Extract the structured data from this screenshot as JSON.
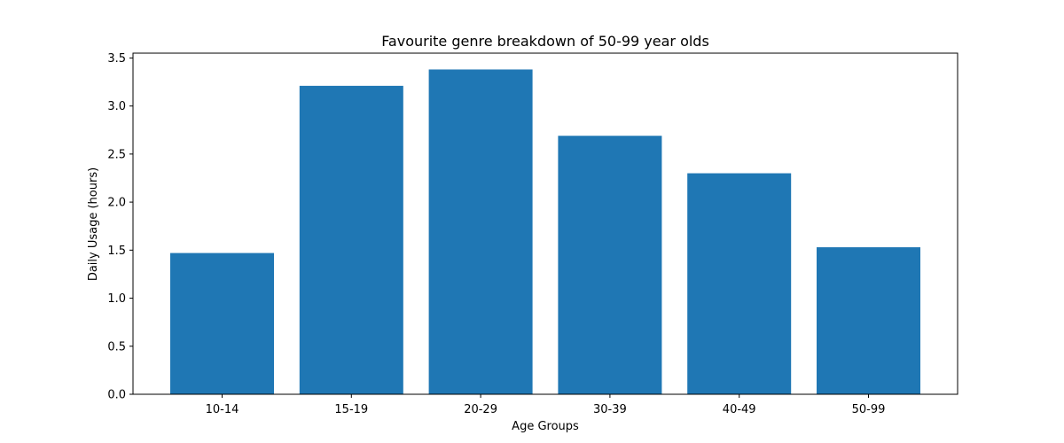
{
  "chart_data": {
    "type": "bar",
    "title": "Favourite genre breakdown of 50-99 year olds",
    "xlabel": "Age Groups",
    "ylabel": "Daily Usage (hours)",
    "categories": [
      "10-14",
      "15-19",
      "20-29",
      "30-39",
      "40-49",
      "50-99"
    ],
    "values": [
      1.47,
      3.21,
      3.38,
      2.69,
      2.3,
      1.53
    ],
    "ylim": [
      0,
      3.55
    ],
    "yticks": [
      "0.0",
      "0.5",
      "1.0",
      "1.5",
      "2.0",
      "2.5",
      "3.0",
      "3.5"
    ],
    "grid": false,
    "legend": "none",
    "bar_color": "#1f77b4"
  }
}
